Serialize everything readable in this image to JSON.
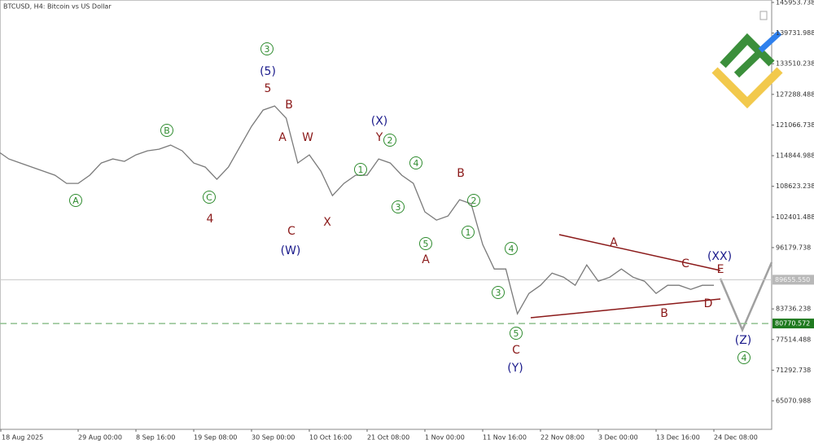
{
  "chart_data": {
    "type": "line",
    "title": "BTCUSD, H4: Bitcoin vs US Dollar",
    "color": "#7a7a7a",
    "categories": [
      "18 Aug 2025",
      null,
      null,
      null,
      null,
      null,
      null,
      "29 Aug 00:00",
      null,
      null,
      null,
      null,
      "8 Sep 16:00",
      null,
      null,
      null,
      null,
      "19 Sep 08:00",
      null,
      null,
      null,
      null,
      "30 Sep 00:00",
      null,
      null,
      null,
      null,
      "10 Oct 16:00",
      null,
      null,
      null,
      null,
      "21 Oct 08:00",
      null,
      null,
      null,
      null,
      "1 Nov 00:00",
      null,
      null,
      null,
      null,
      "11 Nov 16:00",
      null,
      null,
      null,
      null,
      "22 Nov 08:00",
      null,
      null,
      null,
      null,
      "3 Dec 00:00",
      null,
      null,
      null,
      null,
      "13 Dec 16:00",
      null,
      null,
      null,
      null,
      "24 Dec 08:00"
    ],
    "values": [
      115833,
      114178,
      113350,
      112523,
      111695,
      110868,
      109213,
      109213,
      110868,
      113350,
      114178,
      113681,
      115005,
      115833,
      116164,
      116991,
      115833,
      113350,
      112523,
      110040,
      112523,
      116660,
      120798,
      124108,
      124935,
      122453,
      113350,
      115005,
      111695,
      106730,
      109213,
      110868,
      110868,
      114178,
      113350,
      110868,
      109213,
      103420,
      101765,
      102593,
      105903,
      105075,
      96800,
      91835,
      91835,
      82733,
      86870,
      88525,
      91008,
      90180,
      88525,
      92663,
      89353,
      90180,
      91835,
      90180,
      89353,
      86870,
      88525,
      88525,
      87698,
      88525,
      88525
    ],
    "ylim": [
      59280,
      146450
    ],
    "yticks": [
      65070.988,
      71292.738,
      77514.488,
      83736.238,
      96179.738,
      102401.488,
      108623.238,
      114844.988,
      121066.738,
      127288.488,
      133510.238,
      139731.988,
      145953.738
    ],
    "price_lines": [
      {
        "value": 89655.55,
        "label": "89655.550",
        "color": "#b8b8b8"
      },
      {
        "value": 80770.572,
        "color": "#1f7a1f"
      }
    ],
    "annotations": [
      {
        "text": "A",
        "color": "#2e8b2e",
        "circled": true
      },
      {
        "text": "B",
        "color": "#2e8b2e",
        "circled": true
      },
      {
        "text": "C",
        "color": "#2e8b2e",
        "circled": true
      },
      {
        "text": "3",
        "color": "#2e8b2e",
        "circled": true
      },
      {
        "text": "1",
        "color": "#2e8b2e",
        "circled": true
      },
      {
        "text": "2",
        "color": "#2e8b2e",
        "circled": true
      },
      {
        "text": "4",
        "color": "#2e8b2e",
        "circled": true
      },
      {
        "text": "3",
        "color": "#2e8b2e",
        "circled": true
      },
      {
        "text": "5",
        "color": "#2e8b2e",
        "circled": true
      },
      {
        "text": "1",
        "color": "#2e8b2e",
        "circled": true
      },
      {
        "text": "2",
        "color": "#2e8b2e",
        "circled": true
      },
      {
        "text": "4",
        "color": "#2e8b2e",
        "circled": true
      },
      {
        "text": "3",
        "color": "#2e8b2e",
        "circled": true
      },
      {
        "text": "5",
        "color": "#2e8b2e",
        "circled": true
      },
      {
        "text": "4",
        "color": "#2e8b2e",
        "circled": true
      },
      {
        "text": "4",
        "color": "#8b1a1a"
      },
      {
        "text": "5",
        "color": "#8b1a1a"
      },
      {
        "text": "B",
        "color": "#8b1a1a"
      },
      {
        "text": "A",
        "color": "#8b1a1a"
      },
      {
        "text": "W",
        "color": "#8b1a1a"
      },
      {
        "text": "X",
        "color": "#8b1a1a"
      },
      {
        "text": "C",
        "color": "#8b1a1a"
      },
      {
        "text": "Y",
        "color": "#8b1a1a"
      },
      {
        "text": "B",
        "color": "#8b1a1a"
      },
      {
        "text": "A",
        "color": "#8b1a1a"
      },
      {
        "text": "C",
        "color": "#8b1a1a"
      },
      {
        "text": "A",
        "color": "#8b1a1a"
      },
      {
        "text": "C",
        "color": "#8b1a1a"
      },
      {
        "text": "E",
        "color": "#8b1a1a"
      },
      {
        "text": "D",
        "color": "#8b1a1a"
      },
      {
        "text": "B",
        "color": "#8b1a1a"
      },
      {
        "text": "(5)",
        "color": "#1a1a8b"
      },
      {
        "text": "(W)",
        "color": "#1a1a8b"
      },
      {
        "text": "(X)",
        "color": "#1a1a8b"
      },
      {
        "text": "(Y)",
        "color": "#1a1a8b"
      },
      {
        "text": "(XX)",
        "color": "#1a1a8b"
      },
      {
        "text": "(Z)",
        "color": "#1a1a8b"
      }
    ]
  }
}
